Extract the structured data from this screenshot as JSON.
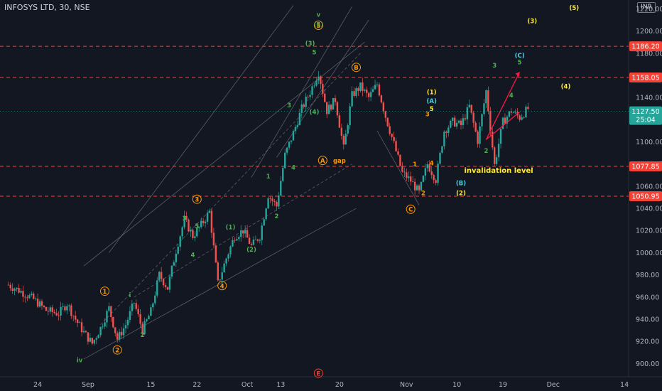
{
  "symbol": {
    "title": "INFOSYS LTD, 30, NSE",
    "currency": "INR"
  },
  "colors": {
    "background": "#131722",
    "up": "#26a69a",
    "down": "#ef5350",
    "grid_text": "#b2b5be",
    "green_label": "#4caf50",
    "orange_label": "#ff9800",
    "yellow_label": "#ffeb3b",
    "cyan_label": "#4dd0e1",
    "level_line": "#f44336",
    "channel_line": "#787b86",
    "projection": "#ff1744"
  },
  "chart_data": {
    "type": "candlestick",
    "ylim": [
      888,
      1228
    ],
    "y_ticks": [
      900,
      920,
      940,
      960,
      980,
      1000,
      1020,
      1040,
      1060,
      1080,
      1100,
      1120,
      1140,
      1160,
      1180,
      1200,
      1220
    ],
    "x_ticks": [
      {
        "label": "24",
        "t": 7
      },
      {
        "label": "Sep",
        "t": 19
      },
      {
        "label": "15",
        "t": 34
      },
      {
        "label": "22",
        "t": 45
      },
      {
        "label": "Oct",
        "t": 57
      },
      {
        "label": "13",
        "t": 65
      },
      {
        "label": "20",
        "t": 79
      },
      {
        "label": "Nov",
        "t": 95
      },
      {
        "label": "10",
        "t": 107
      },
      {
        "label": "19",
        "t": 118
      },
      {
        "label": "Dec",
        "t": 130
      },
      {
        "label": "14",
        "t": 147
      }
    ],
    "xlim": [
      -2,
      148
    ],
    "price_path": [
      [
        0,
        971
      ],
      [
        3,
        965
      ],
      [
        6,
        958
      ],
      [
        9,
        948
      ],
      [
        12,
        945
      ],
      [
        14,
        954
      ],
      [
        16,
        940
      ],
      [
        18,
        928
      ],
      [
        20,
        918
      ],
      [
        22,
        932
      ],
      [
        24,
        950
      ],
      [
        26,
        922
      ],
      [
        28,
        935
      ],
      [
        30,
        955
      ],
      [
        32,
        930
      ],
      [
        34,
        947
      ],
      [
        36,
        980
      ],
      [
        38,
        968
      ],
      [
        40,
        1002
      ],
      [
        42,
        1030
      ],
      [
        44,
        1015
      ],
      [
        46,
        1025
      ],
      [
        48,
        1037
      ],
      [
        50,
        972
      ],
      [
        52,
        995
      ],
      [
        54,
        1015
      ],
      [
        56,
        1020
      ],
      [
        58,
        1006
      ],
      [
        60,
        1015
      ],
      [
        62,
        1052
      ],
      [
        64,
        1042
      ],
      [
        66,
        1088
      ],
      [
        68,
        1108
      ],
      [
        70,
        1130
      ],
      [
        72,
        1145
      ],
      [
        74,
        1163
      ],
      [
        76,
        1128
      ],
      [
        78,
        1138
      ],
      [
        80,
        1094
      ],
      [
        82,
        1142
      ],
      [
        84,
        1150
      ],
      [
        86,
        1140
      ],
      [
        88,
        1152
      ],
      [
        90,
        1123
      ],
      [
        92,
        1098
      ],
      [
        94,
        1072
      ],
      [
        96,
        1065
      ],
      [
        98,
        1054
      ],
      [
        100,
        1080
      ],
      [
        102,
        1066
      ],
      [
        104,
        1110
      ],
      [
        106,
        1118
      ],
      [
        108,
        1115
      ],
      [
        110,
        1132
      ],
      [
        112,
        1101
      ],
      [
        114,
        1146
      ],
      [
        116,
        1079
      ],
      [
        118,
        1118
      ],
      [
        120,
        1128
      ],
      [
        122,
        1122
      ],
      [
        124,
        1130
      ]
    ],
    "price_levels": [
      {
        "value": 1186.2,
        "label": "1186.20"
      },
      {
        "value": 1158.05,
        "label": "1158.05"
      },
      {
        "value": 1077.85,
        "label": "1077.85"
      },
      {
        "value": 1050.95,
        "label": "1050.95"
      }
    ],
    "last_price": {
      "value": 1127.5,
      "label": "1127.50",
      "countdown": "25:04"
    },
    "wave_labels": [
      {
        "text": "iv",
        "t": 17,
        "v": 901,
        "color": "green"
      },
      {
        "text": "1",
        "t": 23,
        "v": 963,
        "color": "orange",
        "circled": true
      },
      {
        "text": "2",
        "t": 26,
        "v": 910,
        "color": "orange",
        "circled": true
      },
      {
        "text": "3",
        "t": 45,
        "v": 1046,
        "color": "orange",
        "circled": true
      },
      {
        "text": "4",
        "t": 51,
        "v": 968,
        "color": "orange",
        "circled": true
      },
      {
        "text": "5",
        "t": 74,
        "v": 1203,
        "color": "orange",
        "circled": true
      },
      {
        "text": "v",
        "t": 74,
        "v": 1213,
        "color": "green"
      },
      {
        "text": "A",
        "t": 75,
        "v": 1081,
        "color": "orange",
        "circled": true
      },
      {
        "text": "gap",
        "t": 79,
        "v": 1081,
        "color": "orange"
      },
      {
        "text": "B",
        "t": 83,
        "v": 1165,
        "color": "orange",
        "circled": true
      },
      {
        "text": "C",
        "t": 96,
        "v": 1037,
        "color": "orange",
        "circled": true
      },
      {
        "text": "E",
        "t": 74,
        "v": 889,
        "color": "red",
        "circled": true
      },
      {
        "text": "i",
        "t": 29,
        "v": 960,
        "color": "green"
      },
      {
        "text": "2",
        "t": 32,
        "v": 924,
        "color": "green"
      },
      {
        "text": "3",
        "t": 42,
        "v": 1029,
        "color": "green"
      },
      {
        "text": "5",
        "t": 45,
        "v": 1022,
        "color": "green"
      },
      {
        "text": "4",
        "t": 44,
        "v": 996,
        "color": "green"
      },
      {
        "text": "(1)",
        "t": 53,
        "v": 1021,
        "color": "green"
      },
      {
        "text": "(2)",
        "t": 58,
        "v": 1001,
        "color": "green"
      },
      {
        "text": "1",
        "t": 62,
        "v": 1067,
        "color": "green"
      },
      {
        "text": "2",
        "t": 64,
        "v": 1031,
        "color": "green"
      },
      {
        "text": "3",
        "t": 67,
        "v": 1131,
        "color": "green"
      },
      {
        "text": "4",
        "t": 68,
        "v": 1075,
        "color": "green"
      },
      {
        "text": "(3)",
        "t": 72,
        "v": 1187,
        "color": "green"
      },
      {
        "text": "5",
        "t": 73,
        "v": 1179,
        "color": "green"
      },
      {
        "text": "(4)",
        "t": 73,
        "v": 1125,
        "color": "green"
      },
      {
        "text": "(5)",
        "t": 74,
        "v": 1204,
        "color": "green"
      },
      {
        "text": "3",
        "t": 100,
        "v": 1123,
        "color": "orange"
      },
      {
        "text": "4",
        "t": 101,
        "v": 1079,
        "color": "orange"
      },
      {
        "text": "2",
        "t": 99,
        "v": 1052,
        "color": "orange"
      },
      {
        "text": "1",
        "t": 97,
        "v": 1078,
        "color": "orange"
      },
      {
        "text": "(1)",
        "t": 101,
        "v": 1143,
        "color": "yellow"
      },
      {
        "text": "(A)",
        "t": 101,
        "v": 1135,
        "color": "cyan"
      },
      {
        "text": "5",
        "t": 101,
        "v": 1128,
        "color": "yellow"
      },
      {
        "text": "(B)",
        "t": 108,
        "v": 1061,
        "color": "cyan"
      },
      {
        "text": "(2)",
        "t": 108,
        "v": 1052,
        "color": "yellow"
      },
      {
        "text": "2",
        "t": 114,
        "v": 1090,
        "color": "green"
      },
      {
        "text": "3",
        "t": 116,
        "v": 1167,
        "color": "green"
      },
      {
        "text": "4",
        "t": 120,
        "v": 1140,
        "color": "green"
      },
      {
        "text": "(C)",
        "t": 122,
        "v": 1176,
        "color": "cyan"
      },
      {
        "text": "5",
        "t": 122,
        "v": 1170,
        "color": "green"
      },
      {
        "text": "(3)",
        "t": 125,
        "v": 1207,
        "color": "yellow"
      },
      {
        "text": "(4)",
        "t": 133,
        "v": 1148,
        "color": "yellow"
      },
      {
        "text": "(5)",
        "t": 135,
        "v": 1219,
        "color": "yellow"
      },
      {
        "text": "invalidation level",
        "t": 117,
        "v": 1072,
        "color": "yellow"
      }
    ],
    "projection_path": [
      [
        122,
        1127
      ],
      [
        114,
        1102
      ],
      [
        122,
        1163
      ]
    ]
  }
}
